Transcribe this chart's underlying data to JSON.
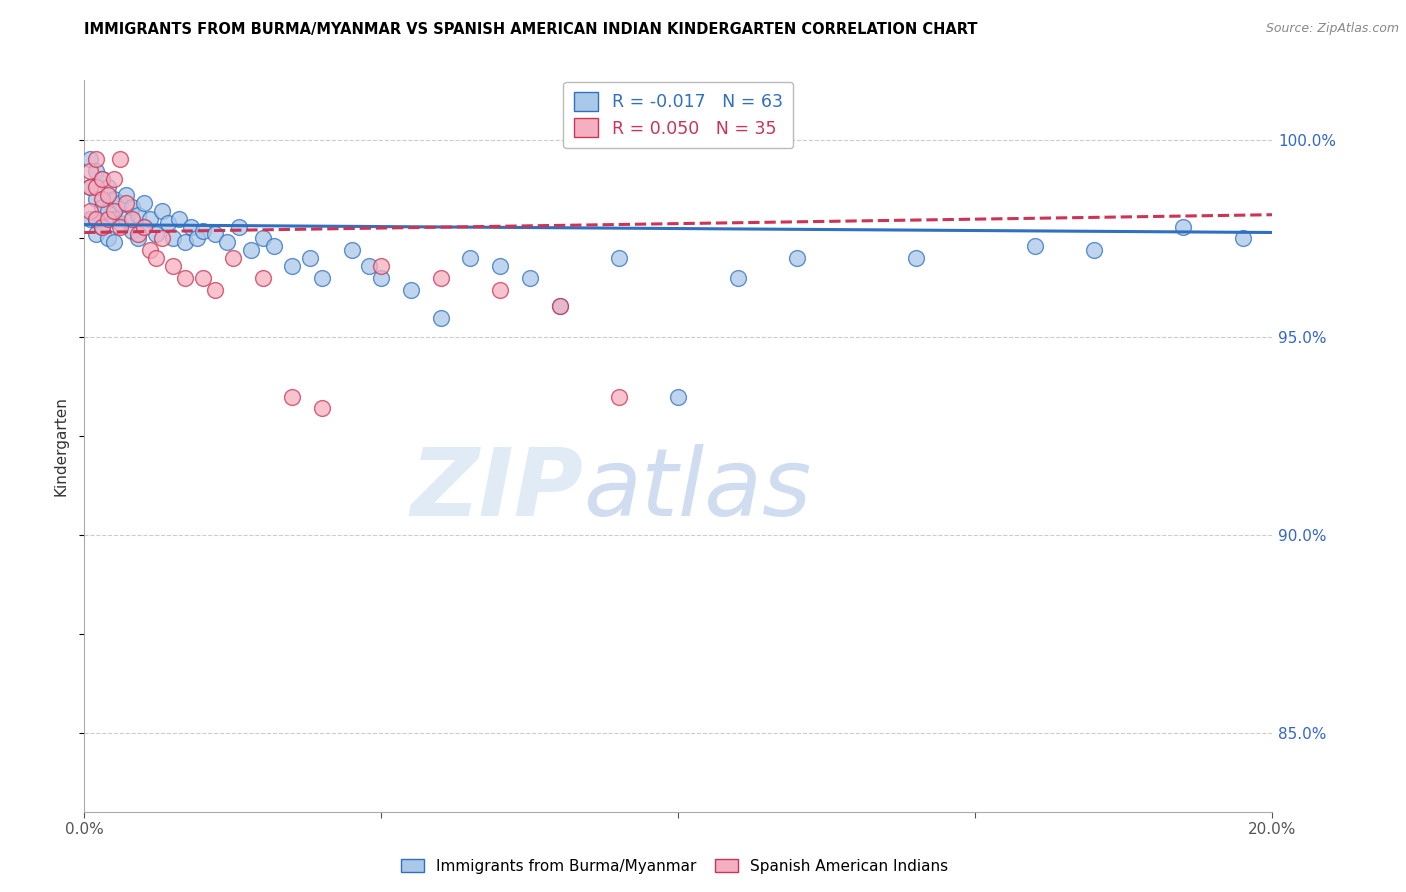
{
  "title": "IMMIGRANTS FROM BURMA/MYANMAR VS SPANISH AMERICAN INDIAN KINDERGARTEN CORRELATION CHART",
  "source": "Source: ZipAtlas.com",
  "ylabel": "Kindergarten",
  "right_yticks": [
    100.0,
    95.0,
    90.0,
    85.0
  ],
  "right_ytick_labels": [
    "100.0%",
    "95.0%",
    "90.0%",
    "85.0%"
  ],
  "legend_blue_r": "-0.017",
  "legend_blue_n": "63",
  "legend_pink_r": "0.050",
  "legend_pink_n": "35",
  "blue_scatter_x": [
    0.001,
    0.001,
    0.001,
    0.002,
    0.002,
    0.002,
    0.002,
    0.003,
    0.003,
    0.003,
    0.004,
    0.004,
    0.004,
    0.005,
    0.005,
    0.005,
    0.006,
    0.006,
    0.007,
    0.007,
    0.008,
    0.008,
    0.009,
    0.009,
    0.01,
    0.01,
    0.011,
    0.012,
    0.013,
    0.014,
    0.015,
    0.016,
    0.017,
    0.018,
    0.019,
    0.02,
    0.022,
    0.024,
    0.026,
    0.028,
    0.03,
    0.032,
    0.035,
    0.038,
    0.04,
    0.045,
    0.048,
    0.05,
    0.055,
    0.06,
    0.065,
    0.07,
    0.075,
    0.08,
    0.09,
    0.1,
    0.11,
    0.12,
    0.14,
    0.16,
    0.17,
    0.185,
    0.195
  ],
  "blue_scatter_y": [
    99.5,
    98.8,
    98.0,
    99.2,
    98.5,
    98.0,
    97.6,
    99.0,
    98.3,
    97.8,
    98.8,
    98.2,
    97.5,
    98.5,
    98.0,
    97.4,
    98.4,
    97.9,
    98.6,
    98.0,
    98.3,
    97.7,
    98.1,
    97.5,
    98.4,
    97.8,
    98.0,
    97.6,
    98.2,
    97.9,
    97.5,
    98.0,
    97.4,
    97.8,
    97.5,
    97.7,
    97.6,
    97.4,
    97.8,
    97.2,
    97.5,
    97.3,
    96.8,
    97.0,
    96.5,
    97.2,
    96.8,
    96.5,
    96.2,
    95.5,
    97.0,
    96.8,
    96.5,
    95.8,
    97.0,
    93.5,
    96.5,
    97.0,
    97.0,
    97.3,
    97.2,
    97.8,
    97.5
  ],
  "pink_scatter_x": [
    0.001,
    0.001,
    0.001,
    0.002,
    0.002,
    0.002,
    0.003,
    0.003,
    0.003,
    0.004,
    0.004,
    0.005,
    0.005,
    0.006,
    0.006,
    0.007,
    0.008,
    0.009,
    0.01,
    0.011,
    0.012,
    0.013,
    0.015,
    0.017,
    0.02,
    0.022,
    0.025,
    0.03,
    0.035,
    0.04,
    0.05,
    0.06,
    0.07,
    0.08,
    0.09
  ],
  "pink_scatter_y": [
    99.2,
    98.8,
    98.2,
    99.5,
    98.8,
    98.0,
    99.0,
    98.5,
    97.8,
    98.6,
    98.0,
    99.0,
    98.2,
    99.5,
    97.8,
    98.4,
    98.0,
    97.6,
    97.8,
    97.2,
    97.0,
    97.5,
    96.8,
    96.5,
    96.5,
    96.2,
    97.0,
    96.5,
    93.5,
    93.2,
    96.8,
    96.5,
    96.2,
    95.8,
    93.5
  ],
  "blue_line_x": [
    0.0,
    0.2
  ],
  "blue_line_y": [
    97.85,
    97.65
  ],
  "pink_line_x": [
    0.0,
    0.2
  ],
  "pink_line_y": [
    97.65,
    98.1
  ],
  "blue_color": "#aac8e8",
  "pink_color": "#f4afc0",
  "blue_line_color": "#3070c0",
  "pink_line_color": "#cc3355",
  "right_axis_color": "#3366cc",
  "grid_color": "#cccccc",
  "watermark_zip": "ZIP",
  "watermark_atlas": "atlas",
  "xlim": [
    0.0,
    0.2
  ],
  "ylim": [
    83.0,
    101.5
  ]
}
